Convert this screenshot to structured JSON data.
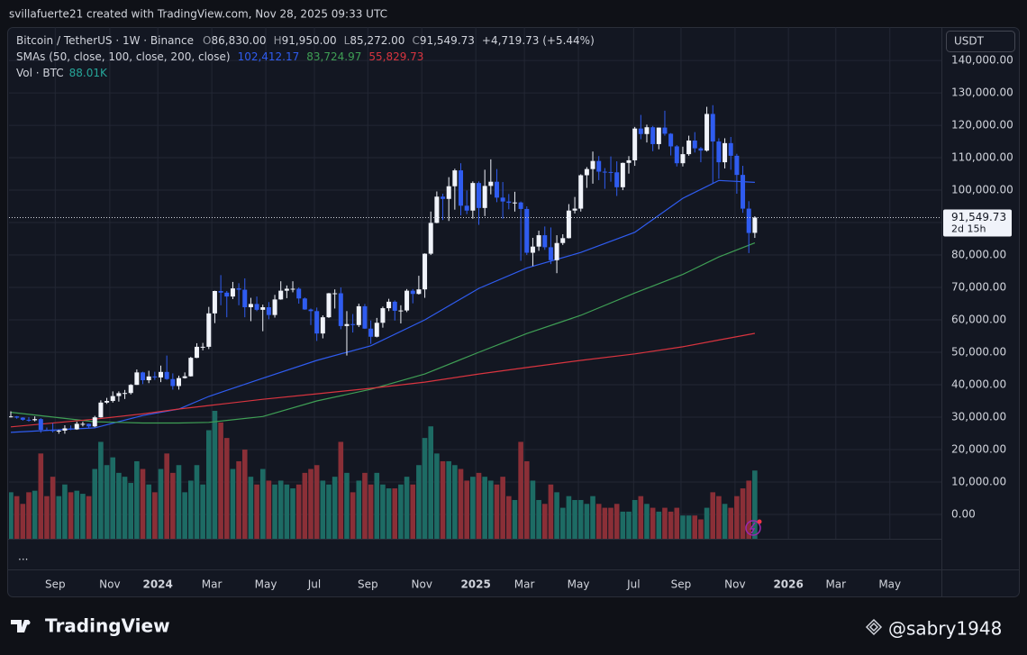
{
  "header": {
    "credit": "svillafuerte21 created with TradingView.com, Nov 28, 2025 09:33 UTC",
    "symbol": "Bitcoin / TetherUS · 1W · Binance",
    "ohlc": [
      [
        "O",
        "86,830.00"
      ],
      [
        "H",
        "91,950.00"
      ],
      [
        "L",
        "85,272.00"
      ],
      [
        "C",
        "91,549.73"
      ]
    ],
    "change": "+4,719.73 (+5.44%)",
    "sma_label": "SMAs (50, close, 100, close, 200, close)",
    "vol_label": "Vol · BTC",
    "vol_value": "88.01K",
    "currency": "USDT",
    "more": "...",
    "brand": "TradingView",
    "watermark": "@sabry1948",
    "last_price": "91,549.73",
    "countdown": "2d 15h"
  },
  "chart_data": {
    "type": "candlestick",
    "up_color": "#f0f3fa",
    "down_color": "#2f5cf0",
    "volume_up_color": "#1d6b64",
    "volume_down_color": "#8a2f37",
    "xlim": [
      -0.3,
      155.1
    ],
    "ylim": [
      -7500,
      150300
    ],
    "volume_lim": [
      0,
      660000
    ],
    "grid": true,
    "xticks": [
      {
        "value": 7.4,
        "label": "Sep"
      },
      {
        "value": 16.5,
        "label": "Nov"
      },
      {
        "value": 24.5,
        "label": "2024"
      },
      {
        "value": 33.5,
        "label": "Mar"
      },
      {
        "value": 42.5,
        "label": "May"
      },
      {
        "value": 50.6,
        "label": "Jul"
      },
      {
        "value": 59.5,
        "label": "Sep"
      },
      {
        "value": 68.5,
        "label": "Nov"
      },
      {
        "value": 77.5,
        "label": "2025"
      },
      {
        "value": 85.6,
        "label": "Mar"
      },
      {
        "value": 94.6,
        "label": "May"
      },
      {
        "value": 103.8,
        "label": "Jul"
      },
      {
        "value": 111.7,
        "label": "Sep"
      },
      {
        "value": 120.7,
        "label": "Nov"
      },
      {
        "value": 129.6,
        "label": "2026"
      },
      {
        "value": 137.5,
        "label": "Mar"
      },
      {
        "value": 146.5,
        "label": "May"
      }
    ],
    "yticks": [
      {
        "value": 0,
        "label": "0.00"
      },
      {
        "value": 10000,
        "label": "10,000.00"
      },
      {
        "value": 20000,
        "label": "20,000.00"
      },
      {
        "value": 30000,
        "label": "30,000.00"
      },
      {
        "value": 40000,
        "label": "40,000.00"
      },
      {
        "value": 50000,
        "label": "50,000.00"
      },
      {
        "value": 60000,
        "label": "60,000.00"
      },
      {
        "value": 70000,
        "label": "70,000.00"
      },
      {
        "value": 80000,
        "label": "80,000.00"
      },
      {
        "value": 90000,
        "label": "90,000.00"
      },
      {
        "value": 100000,
        "label": "100,000.00"
      },
      {
        "value": 110000,
        "label": "110,000.00"
      },
      {
        "value": 120000,
        "label": "120,000.00"
      },
      {
        "value": 130000,
        "label": "130,000.00"
      },
      {
        "value": 140000,
        "label": "140,000.00"
      }
    ],
    "open": [
      30160,
      30230,
      29850,
      29200,
      29050,
      29400,
      26100,
      26000,
      25800,
      25850,
      26550,
      26250,
      27950,
      27950,
      27150,
      29950,
      34500,
      35000,
      36500,
      37400,
      37450,
      39950,
      43800,
      41400,
      42550,
      42250,
      43950,
      41750,
      39600,
      42050,
      42600,
      48300,
      51700,
      51700,
      62000,
      68900,
      68400,
      67200,
      69700,
      69300,
      63900,
      64900,
      63100,
      63900,
      61500,
      66300,
      69000,
      69600,
      69600,
      66600,
      63200,
      62700,
      55800,
      60800,
      68200,
      68200,
      58100,
      58700,
      58400,
      64200,
      57300,
      54800,
      59100,
      63600,
      65600,
      62800,
      62900,
      69000,
      68000,
      69400,
      80400,
      89900,
      98000,
      97300,
      101200,
      106100,
      95200,
      93700,
      102200,
      94500,
      101300,
      102600,
      97700,
      96500,
      96100,
      96200,
      94200,
      80700,
      82600,
      86100,
      82400,
      78400,
      83700,
      85200,
      93700,
      94300,
      104600,
      106500,
      109000,
      105700,
      105600,
      105500,
      100900,
      108400,
      109200,
      119000,
      117300,
      119400,
      114200,
      119300,
      117400,
      113500,
      108300,
      111100,
      115300,
      112900,
      112200,
      123500,
      115000,
      108600,
      114500,
      110600,
      104700,
      94300,
      86830
    ],
    "high": [
      31800,
      30350,
      29990,
      30000,
      30250,
      29700,
      26800,
      28150,
      26100,
      27500,
      27450,
      28600,
      28580,
      28000,
      30400,
      35200,
      35950,
      37950,
      37950,
      38400,
      40200,
      44700,
      44000,
      44300,
      44000,
      45900,
      49000,
      43500,
      42800,
      43800,
      48600,
      52800,
      52900,
      64000,
      69000,
      73800,
      68900,
      71700,
      71300,
      72800,
      66800,
      67200,
      64700,
      65500,
      67700,
      71900,
      70600,
      71900,
      70000,
      66900,
      63500,
      63800,
      61400,
      68300,
      69400,
      70000,
      62700,
      61800,
      65000,
      64900,
      59800,
      60600,
      64100,
      66500,
      66000,
      64500,
      69500,
      69500,
      73600,
      80500,
      93400,
      99600,
      98900,
      104000,
      106600,
      108300,
      99900,
      102700,
      102700,
      106300,
      109500,
      106500,
      102500,
      98800,
      99500,
      96500,
      95000,
      85300,
      87500,
      88800,
      88500,
      86100,
      86400,
      95700,
      97900,
      104900,
      107100,
      111900,
      110500,
      106800,
      110400,
      108900,
      108500,
      110500,
      119500,
      123200,
      120200,
      119800,
      119300,
      124500,
      117600,
      113900,
      113400,
      116800,
      117900,
      113300,
      125700,
      126200,
      116000,
      116000,
      116400,
      111200,
      107500,
      96600,
      91950
    ],
    "low": [
      29900,
      29500,
      28900,
      28600,
      28700,
      25200,
      25800,
      25300,
      24900,
      24900,
      26000,
      26100,
      27150,
      26550,
      26900,
      29850,
      34100,
      34500,
      34800,
      35600,
      37000,
      39950,
      40200,
      40500,
      41500,
      40800,
      41500,
      38500,
      38500,
      41900,
      42500,
      48200,
      50600,
      51000,
      59000,
      64500,
      60800,
      66400,
      64500,
      60800,
      59600,
      62700,
      56500,
      60200,
      60700,
      66200,
      66700,
      68500,
      65000,
      63100,
      58400,
      53500,
      54300,
      60600,
      63500,
      57100,
      49000,
      56100,
      57800,
      57200,
      52600,
      54600,
      57600,
      62700,
      59800,
      58900,
      62400,
      65100,
      67800,
      66800,
      80000,
      89800,
      90800,
      90500,
      94000,
      92200,
      92600,
      91200,
      89300,
      92000,
      98700,
      96300,
      91200,
      94100,
      93400,
      78200,
      80000,
      76600,
      81300,
      81600,
      77200,
      74400,
      83100,
      85100,
      92800,
      93400,
      100700,
      102000,
      103100,
      100400,
      102600,
      98200,
      100000,
      105100,
      107500,
      115700,
      114700,
      112000,
      112600,
      116800,
      110700,
      107300,
      107300,
      110600,
      111600,
      108600,
      111900,
      102000,
      103500,
      106700,
      106300,
      98900,
      93000,
      80600,
      85272
    ],
    "close": [
      30230,
      29850,
      29200,
      29050,
      29400,
      26100,
      26000,
      25800,
      25850,
      26550,
      26250,
      27950,
      27950,
      27150,
      29950,
      34500,
      35000,
      36500,
      37400,
      37450,
      39950,
      43800,
      41400,
      42550,
      42250,
      43950,
      41750,
      39600,
      42050,
      42600,
      48300,
      51700,
      51700,
      62000,
      68900,
      68400,
      67200,
      69700,
      69300,
      63900,
      64900,
      63100,
      63900,
      61500,
      66300,
      69000,
      69600,
      69600,
      66600,
      63200,
      62700,
      55800,
      60800,
      68200,
      68200,
      58100,
      58700,
      58400,
      64200,
      57300,
      54800,
      59100,
      63600,
      65600,
      62800,
      62900,
      69000,
      68000,
      69400,
      80400,
      89900,
      98000,
      97300,
      101200,
      106100,
      95200,
      93700,
      102200,
      94500,
      101300,
      102600,
      97700,
      96500,
      96100,
      96200,
      94200,
      80700,
      82600,
      86100,
      82400,
      78400,
      83700,
      85200,
      93700,
      94300,
      104600,
      106500,
      109000,
      105700,
      105600,
      105500,
      100900,
      108400,
      109200,
      119000,
      117300,
      119400,
      114200,
      119300,
      117400,
      113500,
      108300,
      111100,
      115300,
      112900,
      112200,
      123500,
      115000,
      108600,
      114500,
      110600,
      104700,
      94300,
      86800,
      91549.73
    ],
    "volume": [
      60000,
      55000,
      45000,
      60000,
      62000,
      110000,
      55000,
      80000,
      55000,
      70000,
      60000,
      62000,
      58000,
      55000,
      90000,
      125000,
      95000,
      105000,
      85000,
      80000,
      72000,
      100000,
      90000,
      70000,
      60000,
      90000,
      110000,
      85000,
      95000,
      60000,
      75000,
      95000,
      70000,
      140000,
      165000,
      150000,
      130000,
      90000,
      100000,
      115000,
      80000,
      70000,
      90000,
      75000,
      70000,
      75000,
      70000,
      65000,
      70000,
      85000,
      90000,
      95000,
      75000,
      70000,
      80000,
      125000,
      85000,
      60000,
      75000,
      85000,
      70000,
      85000,
      70000,
      65000,
      65000,
      70000,
      80000,
      70000,
      95000,
      130000,
      145000,
      110000,
      100000,
      100000,
      95000,
      90000,
      75000,
      80000,
      85000,
      80000,
      75000,
      70000,
      80000,
      55000,
      50000,
      125000,
      100000,
      75000,
      50000,
      45000,
      70000,
      60000,
      40000,
      55000,
      50000,
      50000,
      45000,
      55000,
      45000,
      40000,
      40000,
      45000,
      35000,
      35000,
      50000,
      55000,
      45000,
      40000,
      35000,
      40000,
      35000,
      40000,
      30000,
      30000,
      30000,
      25000,
      40000,
      60000,
      55000,
      45000,
      40000,
      55000,
      65000,
      75000,
      88010
    ],
    "sma": [
      {
        "color": "#2f5cf0",
        "last_label": "102,412.17",
        "x": [
          0,
          14,
          22,
          28,
          33,
          42,
          51,
          60,
          69,
          78,
          86,
          95,
          104,
          112,
          118,
          124
        ],
        "values": [
          25300,
          26700,
          30500,
          32500,
          36400,
          42000,
          47500,
          52000,
          60000,
          69700,
          76000,
          80800,
          87000,
          97500,
          103000,
          102412.17
        ]
      },
      {
        "color": "#3f9f55",
        "last_label": "83,724.97",
        "x": [
          0,
          14,
          22,
          28,
          33,
          42,
          51,
          60,
          69,
          78,
          86,
          95,
          104,
          112,
          118,
          124
        ],
        "values": [
          31500,
          28600,
          28200,
          28200,
          28400,
          30200,
          35000,
          38600,
          43300,
          50000,
          55800,
          61400,
          68300,
          74000,
          79400,
          83724.97
        ]
      },
      {
        "color": "#d8343f",
        "last_label": "55,829.73",
        "x": [
          0,
          14,
          22,
          28,
          33,
          42,
          51,
          60,
          69,
          78,
          86,
          95,
          104,
          112,
          118,
          124
        ],
        "values": [
          27000,
          29400,
          31000,
          32500,
          33600,
          35500,
          37200,
          38900,
          40800,
          43300,
          45300,
          47500,
          49500,
          51700,
          53800,
          55829.73
        ]
      }
    ]
  }
}
